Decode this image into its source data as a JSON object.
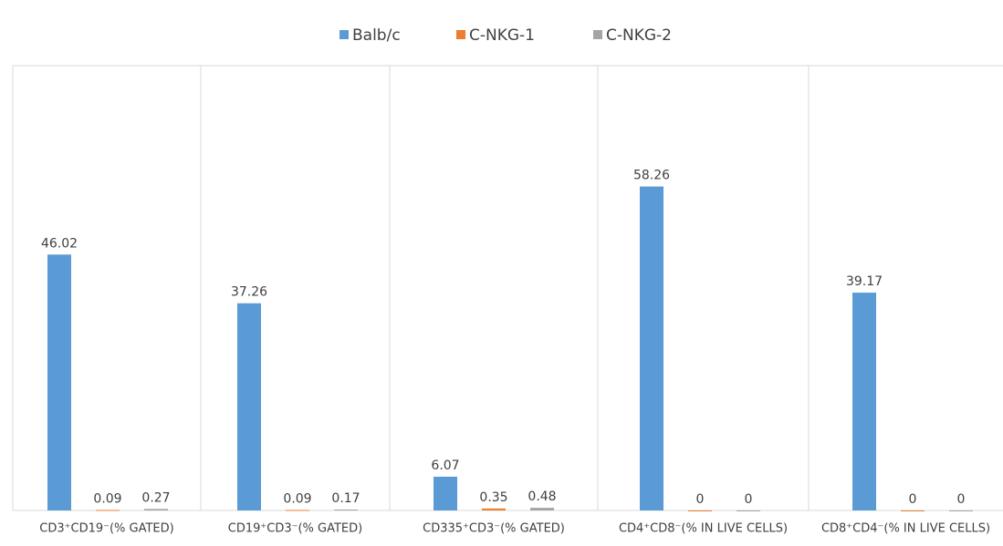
{
  "chart_data": {
    "type": "bar",
    "categories": [
      "CD3⁺CD19⁻(% GATED)",
      "CD19⁺CD3⁻(% GATED)",
      "CD335⁺CD3⁻(% GATED)",
      "CD4⁺CD8⁻(% IN LIVE CELLS)",
      "CD8⁺CD4⁻(% IN LIVE CELLS)"
    ],
    "series": [
      {
        "name": "Balb/c",
        "color": "#5b9bd5",
        "values": [
          46.02,
          37.26,
          6.07,
          58.26,
          39.17
        ]
      },
      {
        "name": "C-NKG-1",
        "color": "#ed7d31",
        "values": [
          0.09,
          0.09,
          0.35,
          0,
          0
        ]
      },
      {
        "name": "C-NKG-2",
        "color": "#a5a5a5",
        "values": [
          0.27,
          0.17,
          0.48,
          0,
          0
        ]
      }
    ],
    "ylim": [
      0,
      80
    ],
    "legend": "top"
  }
}
